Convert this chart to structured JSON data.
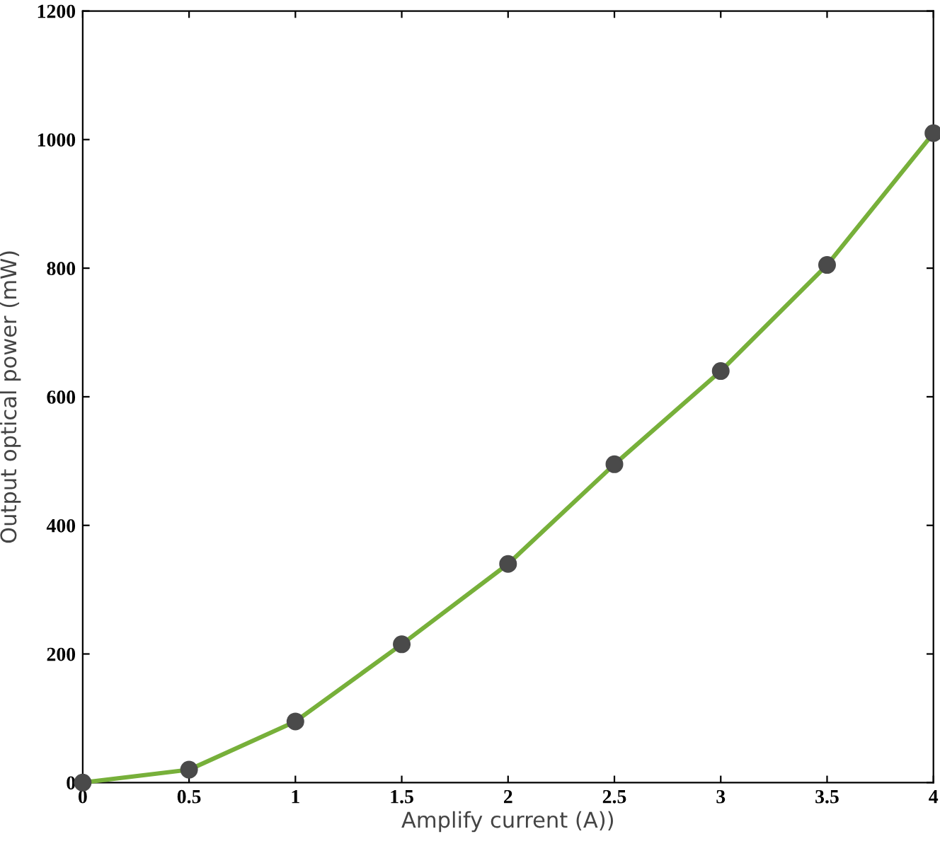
{
  "chart_data": {
    "type": "line",
    "xlabel": "Amplify current (A))",
    "ylabel": "Output optical power (mW)",
    "x": [
      0,
      0.5,
      1,
      1.5,
      2,
      2.5,
      3,
      3.5,
      4
    ],
    "series": [
      {
        "color": "#77b03a",
        "values": [
          0,
          20,
          95,
          215,
          340,
          495,
          640,
          805,
          1010
        ]
      }
    ],
    "marker": "circle",
    "line_style": "solid",
    "grid": false,
    "xlim": [
      0,
      4
    ],
    "ylim": [
      0,
      1200
    ],
    "xticks": [
      0,
      0.5,
      1,
      1.5,
      2,
      2.5,
      3,
      3.5,
      4
    ],
    "yticks": [
      0,
      200,
      400,
      600,
      800,
      1000,
      1200
    ]
  }
}
